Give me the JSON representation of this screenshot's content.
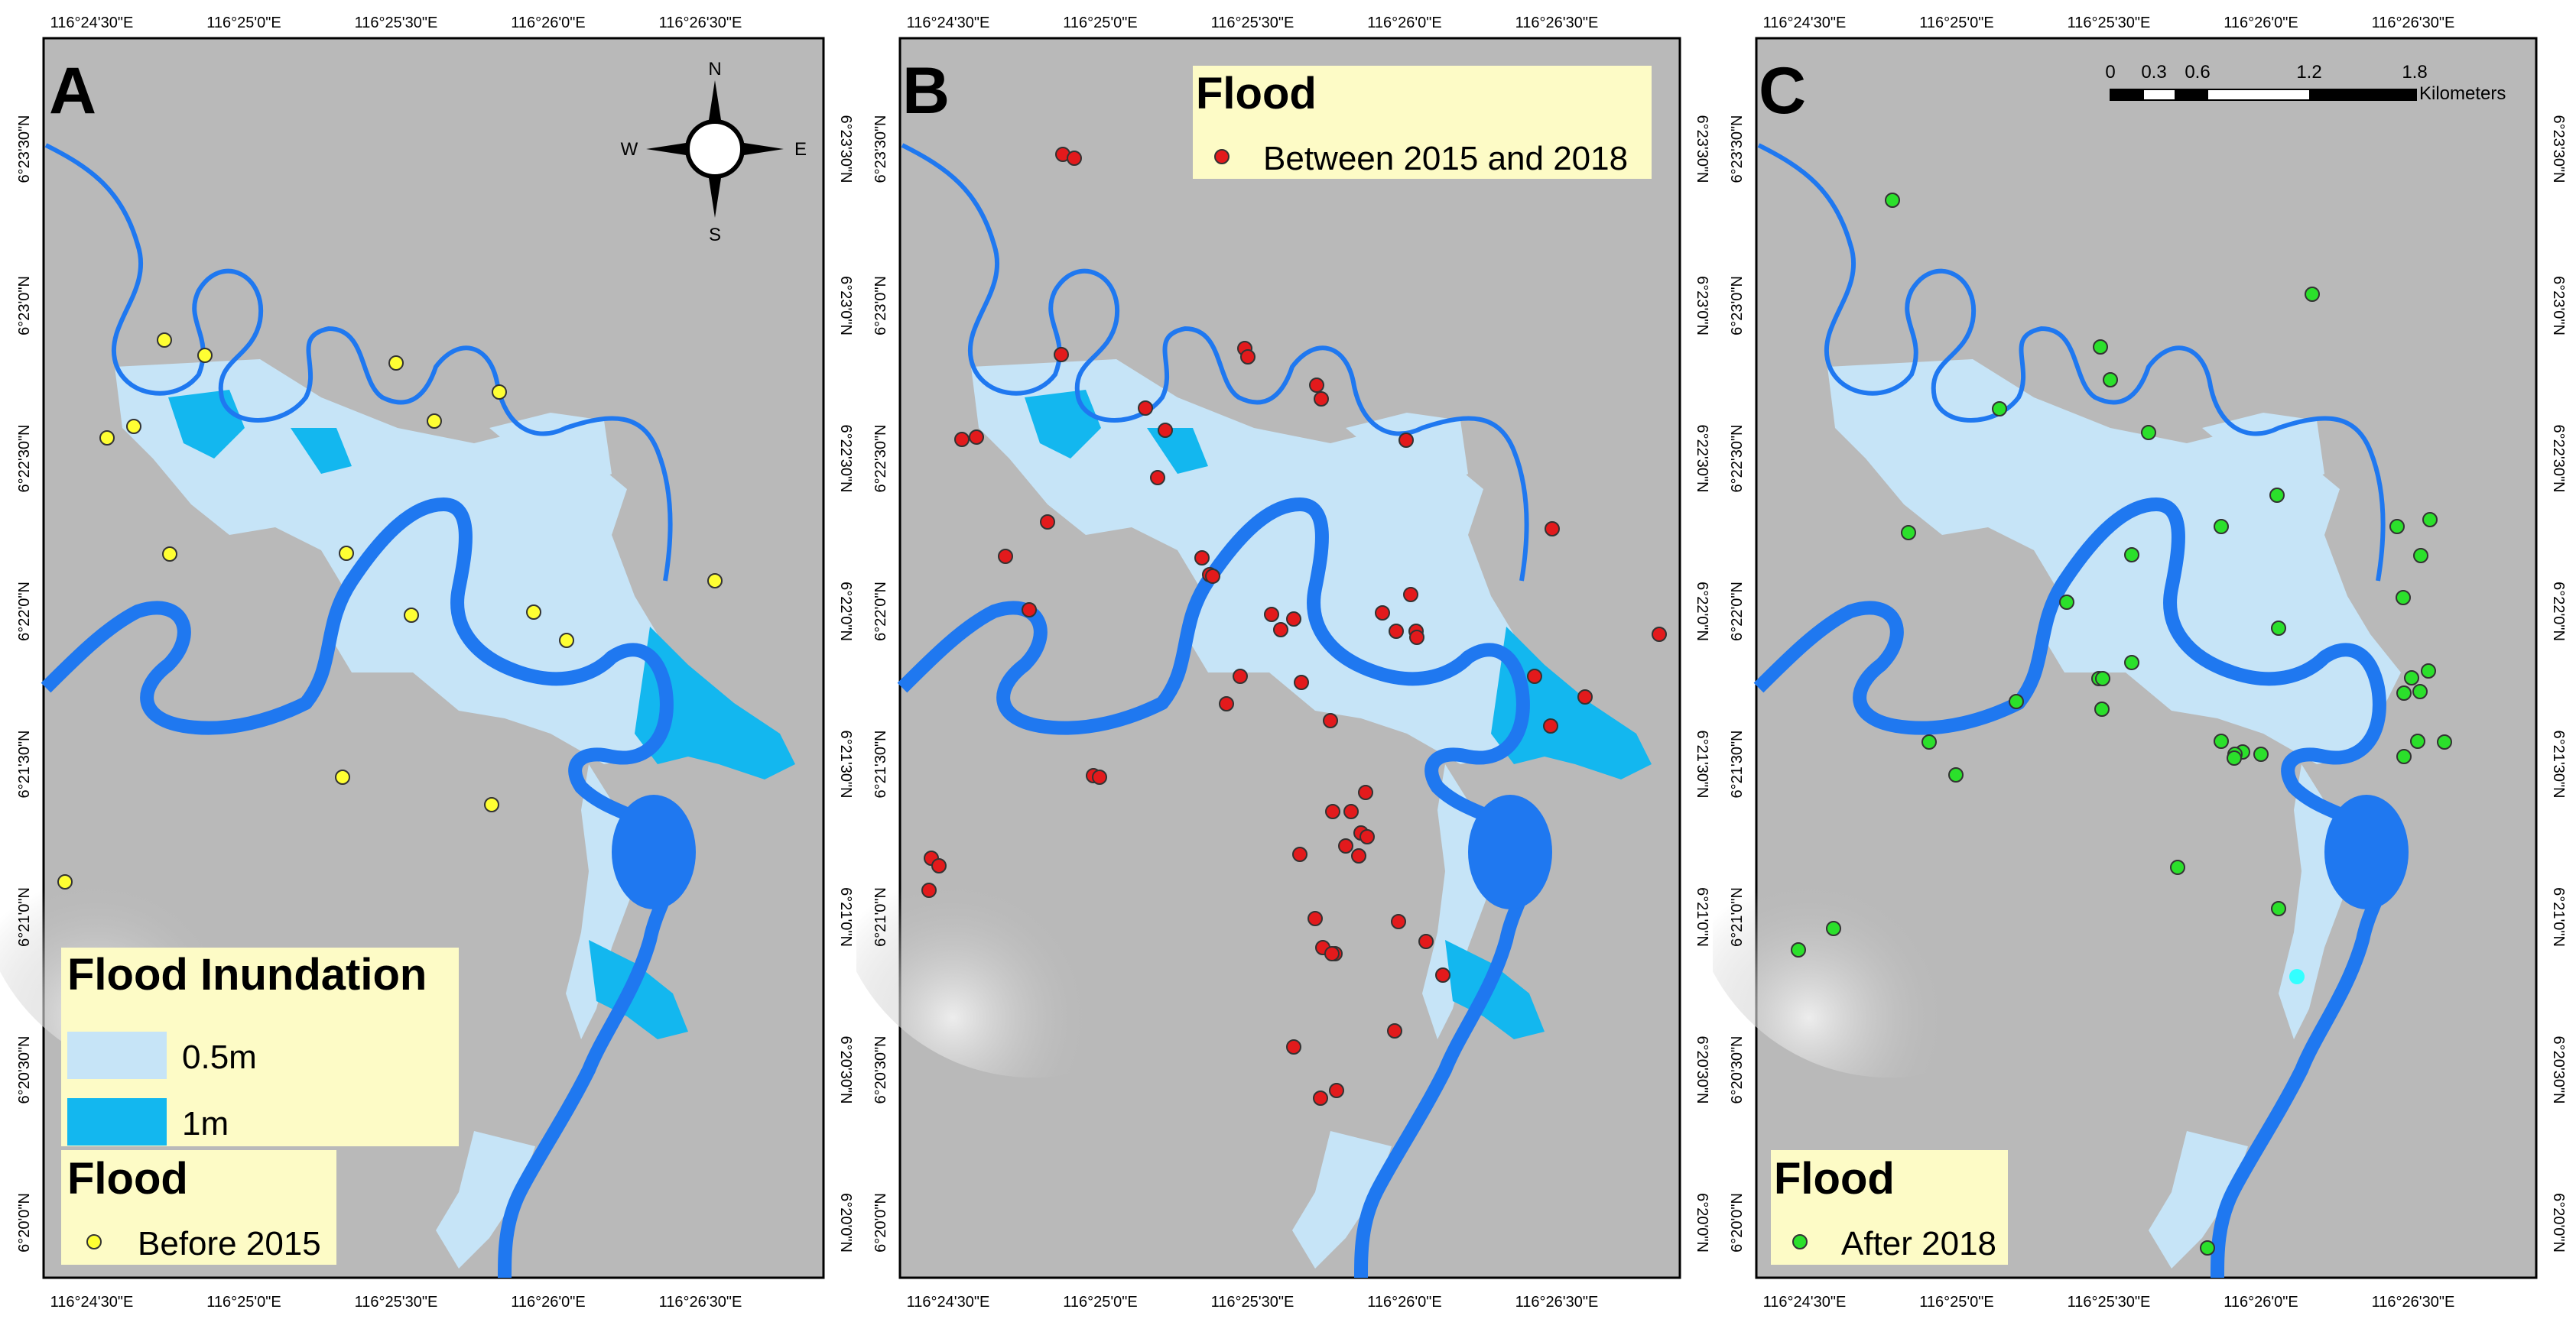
{
  "colors": {
    "hillshade": "#b9b9b9",
    "river": "#1f78f0",
    "flood_shallow": "#c6e4f7",
    "flood_deep": "#13b7ef",
    "legend_bg": "#fdfbc6",
    "point_before": "#ffff33",
    "point_between": "#e31a1c",
    "point_after": "#2be02b",
    "point_after_highlight": "#33ffff"
  },
  "axes": {
    "top_labels": [
      "116°24'30\"E",
      "116°25'0\"E",
      "116°25'30\"E",
      "116°26'0\"E",
      "116°26'30\"E"
    ],
    "bottom_labels": [
      "116°24'30\"E",
      "116°25'0\"E",
      "116°25'30\"E",
      "116°26'0\"E",
      "116°26'30\"E"
    ],
    "lat_labels": [
      "6°23'30\"N",
      "6°23'0\"N",
      "6°22'30\"N",
      "6°22'0\"N",
      "6°21'30\"N",
      "6°21'0\"N",
      "6°20'30\"N",
      "6°20'0\"N"
    ]
  },
  "panels": [
    {
      "letter": "A",
      "north_arrow": {
        "n": "N",
        "s": "S",
        "e": "E",
        "w": "W",
        "icon": "compass-rose-icon"
      },
      "legend_inundation": {
        "title": "Flood Inundation",
        "items": [
          {
            "label": "0.5m",
            "color_key": "flood_shallow"
          },
          {
            "label": "1m",
            "color_key": "flood_deep"
          }
        ]
      },
      "legend_flood": {
        "title": "Flood",
        "item": "Before 2015",
        "color_key": "point_before"
      }
    },
    {
      "letter": "B",
      "legend_flood": {
        "title": "Flood",
        "item": "Between 2015 and 2018",
        "color_key": "point_between"
      }
    },
    {
      "letter": "C",
      "scale_bar": {
        "ticks": [
          "0",
          "0.3",
          "0.6",
          "1.2",
          "1.8"
        ],
        "unit": "Kilometers"
      },
      "legend_flood": {
        "title": "Flood",
        "item": "After 2018",
        "color_key": "point_after"
      }
    }
  ]
}
